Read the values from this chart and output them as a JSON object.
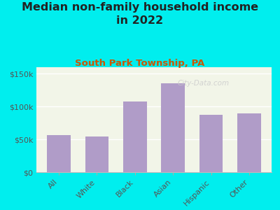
{
  "title": "Median non-family household income\nin 2022",
  "subtitle": "South Park Township, PA",
  "watermark": "City-Data.com",
  "categories": [
    "All",
    "White",
    "Black",
    "Asian",
    "Hispanic",
    "Other"
  ],
  "values": [
    57000,
    54000,
    108000,
    135000,
    87000,
    90000
  ],
  "bar_color": "#b09cc8",
  "background_outer": "#00eeee",
  "background_inner": "#f2f5e8",
  "title_color": "#222222",
  "subtitle_color": "#cc5500",
  "tick_label_color": "#555555",
  "ylim": [
    0,
    160000
  ],
  "yticks": [
    0,
    50000,
    100000,
    150000
  ],
  "ytick_labels": [
    "$0",
    "$50k",
    "$100k",
    "$150k"
  ],
  "title_fontsize": 11.5,
  "subtitle_fontsize": 9.5,
  "tick_fontsize": 8
}
